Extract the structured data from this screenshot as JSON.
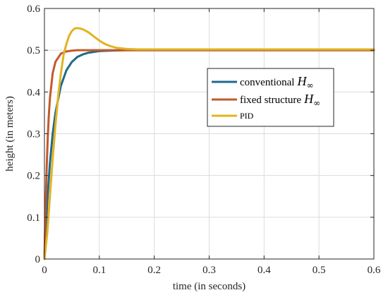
{
  "chart_data": {
    "type": "line",
    "xlabel": "time (in seconds)",
    "ylabel": "height (in meters)",
    "xlim": [
      0,
      0.6
    ],
    "ylim": [
      0,
      0.6
    ],
    "xticks": [
      0,
      0.1,
      0.2,
      0.3,
      0.4,
      0.5,
      0.6
    ],
    "yticks": [
      0,
      0.1,
      0.2,
      0.3,
      0.4,
      0.5,
      0.6
    ],
    "xtick_labels": [
      "0",
      "0.1",
      "0.2",
      "0.3",
      "0.4",
      "0.5",
      "0.6"
    ],
    "ytick_labels": [
      "0",
      "0.1",
      "0.2",
      "0.3",
      "0.4",
      "0.5",
      "0.6"
    ],
    "grid": true,
    "legend_position": "right",
    "series": [
      {
        "name": "conventional",
        "name_symbol": "H",
        "name_subscript": "∞",
        "color": "#1f6a8c",
        "x": [
          0,
          0.005,
          0.01,
          0.015,
          0.02,
          0.03,
          0.04,
          0.05,
          0.06,
          0.07,
          0.08,
          0.1,
          0.12,
          0.15,
          0.2,
          0.3,
          0.4,
          0.5,
          0.6
        ],
        "y": [
          0,
          0.135,
          0.23,
          0.3,
          0.35,
          0.415,
          0.452,
          0.472,
          0.484,
          0.49,
          0.494,
          0.498,
          0.499,
          0.5,
          0.5,
          0.5,
          0.5,
          0.5,
          0.5
        ]
      },
      {
        "name": "fixed structure",
        "name_symbol": "H",
        "name_subscript": "∞",
        "color": "#c25a2a",
        "x": [
          0,
          0.002,
          0.004,
          0.006,
          0.008,
          0.01,
          0.015,
          0.02,
          0.03,
          0.04,
          0.05,
          0.06,
          0.08,
          0.1,
          0.2,
          0.3,
          0.4,
          0.5,
          0.6
        ],
        "y": [
          0,
          0.12,
          0.215,
          0.29,
          0.345,
          0.385,
          0.445,
          0.472,
          0.492,
          0.497,
          0.499,
          0.5,
          0.5,
          0.5,
          0.5,
          0.5,
          0.5,
          0.5,
          0.5
        ]
      },
      {
        "name": "PID",
        "color": "#e2b320",
        "x": [
          0,
          0.005,
          0.01,
          0.015,
          0.02,
          0.025,
          0.03,
          0.035,
          0.04,
          0.045,
          0.05,
          0.055,
          0.06,
          0.065,
          0.07,
          0.08,
          0.09,
          0.1,
          0.11,
          0.12,
          0.13,
          0.15,
          0.17,
          0.2,
          0.25,
          0.3,
          0.4,
          0.5,
          0.6
        ],
        "y": [
          0,
          0.06,
          0.15,
          0.24,
          0.32,
          0.39,
          0.445,
          0.49,
          0.515,
          0.535,
          0.546,
          0.552,
          0.553,
          0.552,
          0.55,
          0.543,
          0.533,
          0.523,
          0.515,
          0.51,
          0.506,
          0.503,
          0.502,
          0.502,
          0.502,
          0.502,
          0.502,
          0.502,
          0.502
        ]
      }
    ]
  }
}
